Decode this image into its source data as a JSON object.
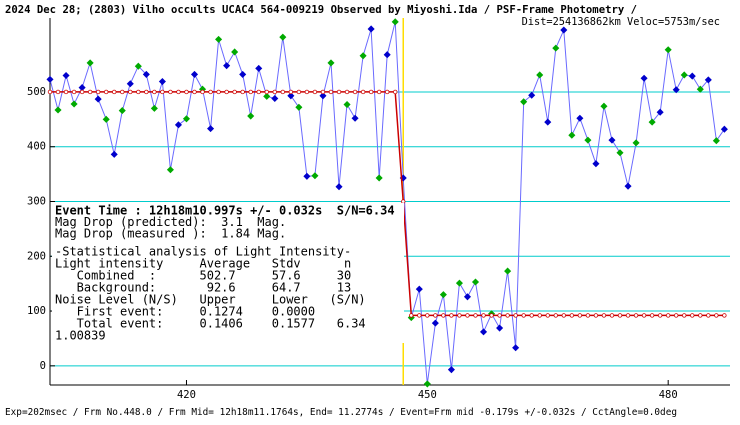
{
  "chart_data": {
    "type": "line",
    "title": "2024 Dec 28; (2803) Vilho occults UCAC4 564-009219 Observed by Miyoshi.Ida / PSF-Frame Photometry /",
    "subtitle": "Dist=254136862km Veloc=5753m/sec",
    "footer": "Exp=202msec / Frm No.448.0 / Frm Mid= 12h18m11.1764s, End= 11.2774s / Event=Frm mid -0.179s +/-0.032s / CctAngle=0.0deg",
    "annotations": [
      "Event Time : 12h18m10.997s +/- 0.032s  S/N=6.34",
      "Mag Drop (predicted):  3.1  Mag.",
      "Mag Drop (measured ):  1.84 Mag.",
      "-Statistical analysis of Light Intensity-",
      "Light intensity     Average   Stdv      n",
      "   Combined  :      502.7     57.6     30",
      "   Background:       92.6     64.7     13",
      "Noise Level (N/S)   Upper     Lower   (S/N)",
      "   First event:     0.1274    0.0000",
      "   Total event:     0.1406    0.1577   6.34",
      "1.00839"
    ],
    "x_start": 403,
    "xlim": [
      403,
      487.7
    ],
    "ylim": [
      -35,
      635
    ],
    "xticks": [
      420,
      450,
      480
    ],
    "yticks": [
      0,
      100,
      200,
      300,
      400,
      500
    ],
    "grid": true,
    "event_x": 447,
    "series": [
      {
        "color": "#6a6aff",
        "marker_colors": [
          "#0000cc",
          "#00aa00"
        ],
        "values": [
          523,
          467,
          530,
          478,
          508,
          553,
          487,
          450,
          386,
          466,
          515,
          547,
          532,
          470,
          519,
          358,
          440,
          451,
          532,
          505,
          433,
          596,
          548,
          573,
          532,
          456,
          543,
          492,
          488,
          600,
          493,
          472,
          346,
          347,
          493,
          553,
          327,
          477,
          452,
          566,
          615,
          343,
          568,
          628,
          343,
          88,
          140,
          -33,
          78,
          130,
          -7,
          151,
          126,
          153,
          62,
          95,
          69,
          173,
          33,
          482,
          494,
          531,
          445,
          580,
          613,
          421,
          452,
          412,
          369,
          474,
          412,
          389,
          328,
          407,
          525,
          445,
          463,
          577,
          504,
          531,
          529,
          505,
          522,
          411,
          432
        ]
      },
      {
        "color": "#cc0000",
        "values": [
          500,
          500,
          500,
          500,
          500,
          500,
          500,
          500,
          500,
          500,
          500,
          500,
          500,
          500,
          500,
          500,
          500,
          500,
          500,
          500,
          500,
          500,
          500,
          500,
          500,
          500,
          500,
          500,
          500,
          500,
          500,
          500,
          500,
          500,
          500,
          500,
          500,
          500,
          500,
          500,
          500,
          500,
          500,
          500,
          300,
          92,
          92,
          92,
          92,
          92,
          92,
          92,
          92,
          92,
          92,
          92,
          92,
          92,
          92,
          92,
          92,
          92,
          92,
          92,
          92,
          92,
          92,
          92,
          92,
          92,
          92,
          92,
          92,
          92,
          92,
          92,
          92,
          92,
          92,
          92,
          92,
          92,
          92,
          92,
          92
        ]
      }
    ]
  }
}
